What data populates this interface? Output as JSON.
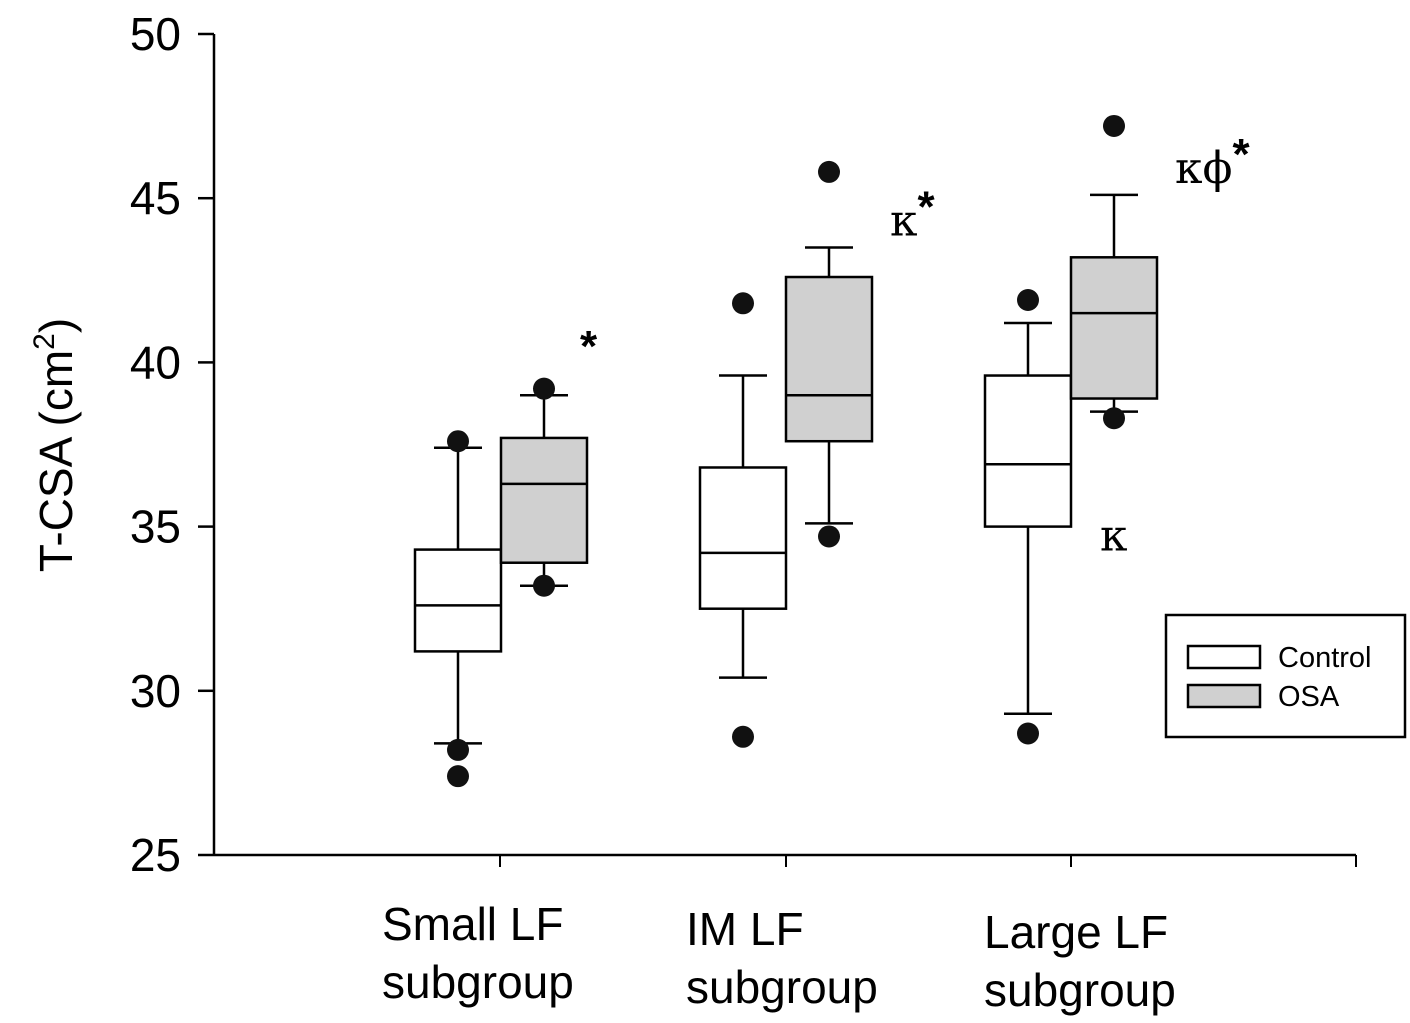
{
  "chart_data": {
    "type": "box",
    "ylabel": "T-CSA (cm",
    "ylabel_sup": "2",
    "ylabel_close": ")",
    "ylim": [
      25,
      50
    ],
    "yticks": [
      25,
      30,
      35,
      40,
      45,
      50
    ],
    "categories": [
      [
        "Small LF",
        "subgroup"
      ],
      [
        "IM LF",
        "subgroup"
      ],
      [
        "Large LF",
        "subgroup"
      ]
    ],
    "legend": {
      "placement": "bottom-right",
      "entries": [
        {
          "label": "Control",
          "color": "#ffffff"
        },
        {
          "label": "OSA",
          "color": "#d0d0d0"
        }
      ]
    },
    "series": [
      {
        "name": "Control",
        "color": "#ffffff",
        "boxes": [
          {
            "whisker_low": 28.4,
            "q1": 31.2,
            "median": 32.6,
            "q3": 34.3,
            "whisker_high": 37.4,
            "outliers": [
              37.6,
              28.2,
              27.4
            ],
            "annotation": ""
          },
          {
            "whisker_low": 30.4,
            "q1": 32.5,
            "median": 34.2,
            "q3": 36.8,
            "whisker_high": 39.6,
            "outliers": [
              41.8,
              28.6
            ],
            "annotation": ""
          },
          {
            "whisker_low": 29.3,
            "q1": 35.0,
            "median": 36.9,
            "q3": 39.6,
            "whisker_high": 41.2,
            "outliers": [
              41.9,
              28.7
            ],
            "annotation": "κ"
          }
        ]
      },
      {
        "name": "OSA",
        "color": "#d0d0d0",
        "boxes": [
          {
            "whisker_low": 33.2,
            "q1": 33.9,
            "median": 36.3,
            "q3": 37.7,
            "whisker_high": 39.0,
            "outliers": [
              39.2,
              33.2
            ],
            "annotation": "*"
          },
          {
            "whisker_low": 35.1,
            "q1": 37.6,
            "median": 39.0,
            "q3": 42.6,
            "whisker_high": 43.5,
            "outliers": [
              45.8,
              34.7
            ],
            "annotation": "κ*"
          },
          {
            "whisker_low": 38.5,
            "q1": 38.9,
            "median": 41.5,
            "q3": 43.2,
            "whisker_high": 45.1,
            "outliers": [
              47.2,
              38.3
            ],
            "annotation": "κϕ*"
          }
        ]
      }
    ]
  }
}
